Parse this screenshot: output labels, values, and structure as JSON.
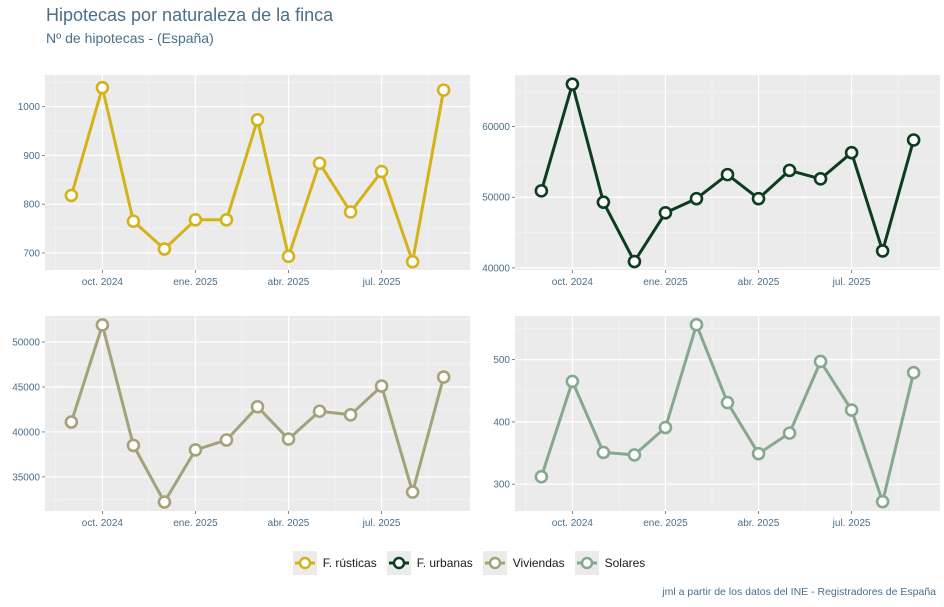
{
  "title": "Hipotecas por naturaleza de la finca",
  "subtitle": "Nº de hipotecas - (España)",
  "caption": "jml a partir de los datos del INE - Registradores de España",
  "chart_data": [
    {
      "type": "line",
      "series": [
        {
          "name": "F. rústicas",
          "color": "#d4b21a"
        }
      ],
      "x": [
        "2024-09",
        "2024-10",
        "2024-11",
        "2024-12",
        "2025-01",
        "2025-02",
        "2025-03",
        "2025-04",
        "2025-05",
        "2025-06",
        "2025-07",
        "2025-08",
        "2025-09"
      ],
      "values": [
        818,
        1039,
        765,
        708,
        768,
        768,
        973,
        693,
        884,
        784,
        867,
        682,
        1034
      ],
      "xticks": [
        "oct. 2024",
        "ene. 2025",
        "abr. 2025",
        "jul. 2025"
      ],
      "yticks": [
        700,
        800,
        900,
        1000
      ],
      "ylim": [
        665,
        1065
      ]
    },
    {
      "type": "line",
      "series": [
        {
          "name": "F. urbanas",
          "color": "#0b3d1e"
        }
      ],
      "x": [
        "2024-09",
        "2024-10",
        "2024-11",
        "2024-12",
        "2025-01",
        "2025-02",
        "2025-03",
        "2025-04",
        "2025-05",
        "2025-06",
        "2025-07",
        "2025-08",
        "2025-09"
      ],
      "values": [
        50900,
        66000,
        49300,
        40900,
        47800,
        49800,
        53200,
        49800,
        53800,
        52600,
        56300,
        42400,
        58100
      ],
      "xticks": [
        "oct. 2024",
        "ene. 2025",
        "abr. 2025",
        "jul. 2025"
      ],
      "yticks": [
        40000,
        50000,
        60000
      ],
      "ylim": [
        39700,
        67300
      ]
    },
    {
      "type": "line",
      "series": [
        {
          "name": "Viviendas",
          "color": "#a3a37a"
        }
      ],
      "x": [
        "2024-09",
        "2024-10",
        "2024-11",
        "2024-12",
        "2025-01",
        "2025-02",
        "2025-03",
        "2025-04",
        "2025-05",
        "2025-06",
        "2025-07",
        "2025-08",
        "2025-09"
      ],
      "values": [
        41100,
        51900,
        38500,
        32200,
        38000,
        39100,
        42800,
        39200,
        42300,
        41900,
        45100,
        33300,
        46100
      ],
      "xticks": [
        "oct. 2024",
        "ene. 2025",
        "abr. 2025",
        "jul. 2025"
      ],
      "yticks": [
        35000,
        40000,
        45000,
        50000
      ],
      "ylim": [
        31200,
        52900
      ]
    },
    {
      "type": "line",
      "series": [
        {
          "name": "Solares",
          "color": "#86a98e"
        }
      ],
      "x": [
        "2024-09",
        "2024-10",
        "2024-11",
        "2024-12",
        "2025-01",
        "2025-02",
        "2025-03",
        "2025-04",
        "2025-05",
        "2025-06",
        "2025-07",
        "2025-08",
        "2025-09"
      ],
      "values": [
        312,
        465,
        351,
        347,
        391,
        556,
        431,
        349,
        382,
        497,
        419,
        272,
        479
      ],
      "xticks": [
        "oct. 2024",
        "ene. 2025",
        "abr. 2025",
        "jul. 2025"
      ],
      "yticks": [
        300,
        400,
        500
      ],
      "ylim": [
        257,
        570
      ]
    }
  ],
  "legend": [
    {
      "label": "F. rústicas",
      "color": "#d4b21a"
    },
    {
      "label": "F. urbanas",
      "color": "#0b3d1e"
    },
    {
      "label": "Viviendas",
      "color": "#a3a37a"
    },
    {
      "label": "Solares",
      "color": "#86a98e"
    }
  ]
}
